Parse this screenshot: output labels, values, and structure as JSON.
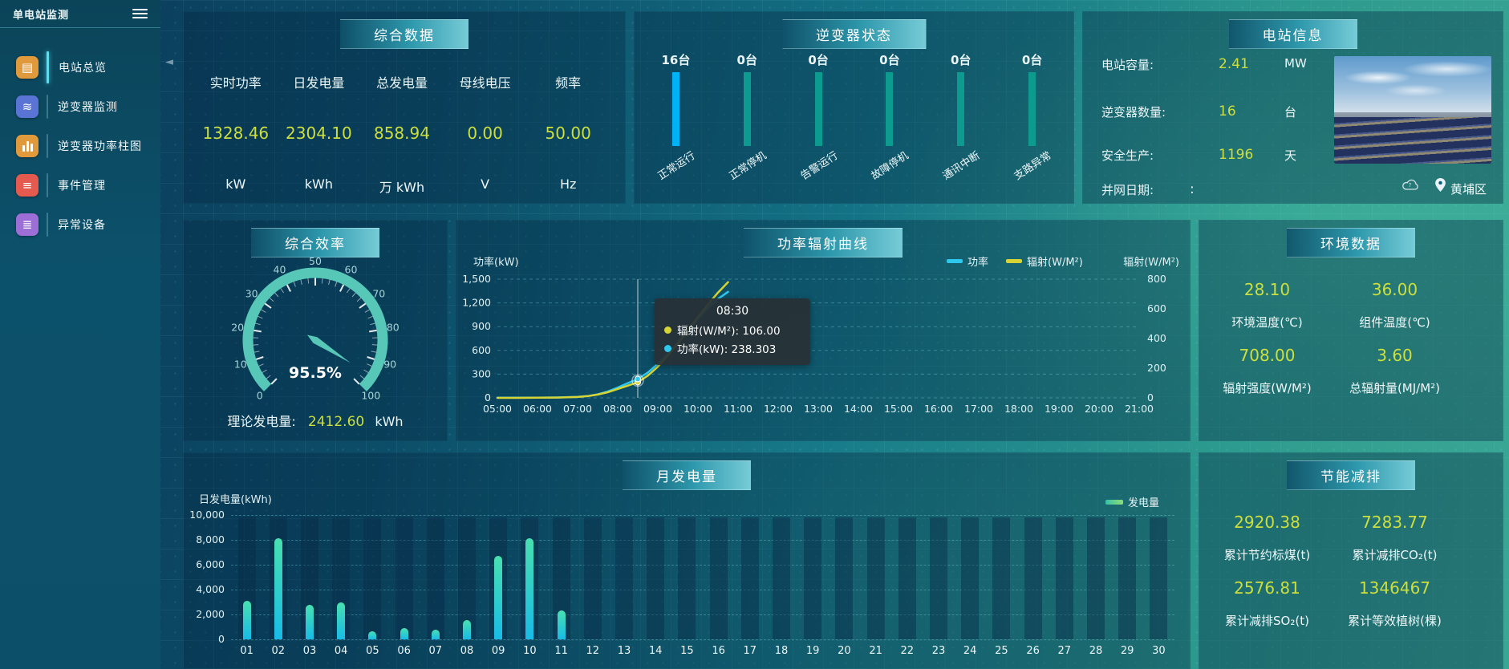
{
  "app": {
    "title": "单电站监测",
    "location": "黄埔区"
  },
  "sidebar": {
    "items": [
      {
        "label": "电站总览",
        "icon": "overview-icon",
        "color": "#e09a3c",
        "active": true
      },
      {
        "label": "逆变器监测",
        "icon": "inverter-monitor-icon",
        "color": "#5a74d6",
        "active": false
      },
      {
        "label": "逆变器功率柱图",
        "icon": "power-bars-icon",
        "color": "#e09a3c",
        "active": false
      },
      {
        "label": "事件管理",
        "icon": "event-icon",
        "color": "#e55a4e",
        "active": false
      },
      {
        "label": "异常设备",
        "icon": "abnormal-device-icon",
        "color": "#9c6ed6",
        "active": false
      }
    ]
  },
  "summary": {
    "title": "综合数据",
    "metrics": [
      {
        "label": "实时功率",
        "value": "1328.46",
        "unit": "kW"
      },
      {
        "label": "日发电量",
        "value": "2304.10",
        "unit": "kWh"
      },
      {
        "label": "总发电量",
        "value": "858.94",
        "unit": "万  kWh"
      },
      {
        "label": "母线电压",
        "value": "0.00",
        "unit": "V"
      },
      {
        "label": "频率",
        "value": "50.00",
        "unit": "Hz"
      }
    ]
  },
  "inverter_status": {
    "title": "逆变器状态",
    "bars": [
      {
        "count": "16台",
        "label": "正常运行",
        "highlight": true
      },
      {
        "count": "0台",
        "label": "正常停机",
        "highlight": false
      },
      {
        "count": "0台",
        "label": "告警运行",
        "highlight": false
      },
      {
        "count": "0台",
        "label": "故障停机",
        "highlight": false
      },
      {
        "count": "0台",
        "label": "通讯中断",
        "highlight": false
      },
      {
        "count": "0台",
        "label": "支路异常",
        "highlight": false
      }
    ]
  },
  "station_info": {
    "title": "电站信息",
    "rows": [
      {
        "label": "电站容量:",
        "value": "2.41",
        "unit": "MW"
      },
      {
        "label": "逆变器数量:",
        "value": "16",
        "unit": "台"
      },
      {
        "label": "安全生产:",
        "value": "1196",
        "unit": "天"
      },
      {
        "label": "并网日期:",
        "value": ":",
        "unit": ""
      }
    ]
  },
  "efficiency": {
    "title": "综合效率",
    "gauge_display": "95.5%",
    "theory_label": "理论发电量:",
    "theory_value": "2412.60",
    "theory_unit": "kWh"
  },
  "power_curve": {
    "title": "功率辐射曲线",
    "y_left_label": "功率(kW)",
    "y_right_label": "辐射(W/M²)",
    "legend": [
      {
        "name": "功率",
        "color": "#2ec7ee"
      },
      {
        "name": "辐射(W/M²)",
        "color": "#d6d434"
      }
    ],
    "tooltip": {
      "time": "08:30",
      "rows": [
        {
          "dot": "#d6d434",
          "text": "辐射(W/M²): 106.00"
        },
        {
          "dot": "#2ec7ee",
          "text": "功率(kW): 238.303"
        }
      ]
    }
  },
  "environment": {
    "title": "环境数据",
    "cells": [
      {
        "value": "28.10",
        "label": "环境温度(℃)"
      },
      {
        "value": "36.00",
        "label": "组件温度(℃)"
      },
      {
        "value": "708.00",
        "label": "辐射强度(W/M²)"
      },
      {
        "value": "3.60",
        "label": "总辐射量(MJ/M²)"
      }
    ]
  },
  "monthly": {
    "title": "月发电量",
    "y_label": "日发电量(kWh)",
    "legend": "发电量"
  },
  "saving": {
    "title": "节能减排",
    "cells": [
      {
        "value": "2920.38",
        "label": "累计节约标煤(t)"
      },
      {
        "value": "7283.77",
        "label": "累计减排CO₂(t)"
      },
      {
        "value": "2576.81",
        "label": "累计减排SO₂(t)"
      },
      {
        "value": "1346467",
        "label": "累计等效植树(棵)"
      }
    ]
  },
  "chart_data": [
    {
      "id": "efficiency_gauge",
      "type": "gauge",
      "title": "综合效率",
      "min": 0,
      "max": 100,
      "value": 95.5,
      "display": "95.5%",
      "tick_labels": [
        "0",
        "10",
        "20",
        "30",
        "40",
        "50",
        "60",
        "70",
        "80",
        "90",
        "100"
      ]
    },
    {
      "id": "power_radiation_curve",
      "type": "line",
      "title": "功率辐射曲线",
      "x_tick_labels": [
        "05:00",
        "06:00",
        "07:00",
        "08:00",
        "09:00",
        "10:00",
        "11:00",
        "12:00",
        "13:00",
        "14:00",
        "15:00",
        "16:00",
        "17:00",
        "18:00",
        "19:00",
        "20:00",
        "21:00"
      ],
      "ylim_left": [
        0,
        1500
      ],
      "yticks_left": [
        0,
        300,
        600,
        900,
        1200,
        1500
      ],
      "y_left_tick_labels": [
        "0",
        "300",
        "600",
        "900",
        "1,200",
        "1,500"
      ],
      "ylim_right": [
        0,
        800
      ],
      "yticks_right": [
        0,
        200,
        400,
        600,
        800
      ],
      "y_right_tick_labels": [
        "0",
        "200",
        "400",
        "600",
        "800"
      ],
      "series": [
        {
          "name": "功率",
          "axis": "left",
          "color": "#2ec7ee",
          "x": [
            5,
            5.5,
            6,
            6.5,
            7,
            7.25,
            7.5,
            7.75,
            8,
            8.25,
            8.5,
            8.75,
            9,
            9.25,
            9.5,
            9.75,
            10,
            10.25,
            10.5,
            10.75
          ],
          "values": [
            2,
            2,
            3,
            5,
            12,
            22,
            45,
            80,
            130,
            185,
            238.3,
            320,
            430,
            560,
            700,
            850,
            1000,
            1140,
            1250,
            1340
          ]
        },
        {
          "name": "辐射(W/M²)",
          "axis": "right",
          "color": "#d6d434",
          "x": [
            5,
            5.5,
            6,
            6.5,
            7,
            7.25,
            7.5,
            7.75,
            8,
            8.25,
            8.5,
            8.75,
            9,
            9.25,
            9.5,
            9.75,
            10,
            10.25,
            10.5,
            10.75
          ],
          "values": [
            0,
            0,
            1,
            2,
            6,
            12,
            22,
            38,
            60,
            82,
            106,
            150,
            210,
            285,
            365,
            455,
            545,
            630,
            710,
            780
          ]
        }
      ],
      "pointer": {
        "x": 8.5,
        "time": "08:30",
        "radiation": 106.0,
        "power": 238.303
      },
      "legend_position": "top-right",
      "grid": "dashed-horizontal"
    },
    {
      "id": "monthly_generation",
      "type": "bar",
      "title": "月发电量",
      "categories": [
        "01",
        "02",
        "03",
        "04",
        "05",
        "06",
        "07",
        "08",
        "09",
        "10",
        "11",
        "12",
        "13",
        "14",
        "15",
        "16",
        "17",
        "18",
        "19",
        "20",
        "21",
        "22",
        "23",
        "24",
        "25",
        "26",
        "27",
        "28",
        "29",
        "30"
      ],
      "values": [
        3100,
        8100,
        2800,
        3000,
        650,
        900,
        750,
        1550,
        6700,
        8100,
        2350,
        0,
        0,
        0,
        0,
        0,
        0,
        0,
        0,
        0,
        0,
        0,
        0,
        0,
        0,
        0,
        0,
        0,
        0,
        0
      ],
      "ylabel": "日发电量(kWh)",
      "ylim": [
        0,
        10000
      ],
      "yticks": [
        0,
        2000,
        4000,
        6000,
        8000,
        10000
      ],
      "y_tick_labels": [
        "0",
        "2,000",
        "4,000",
        "6,000",
        "8,000",
        "10,000"
      ],
      "legend": "发电量",
      "bar_color_top": "#49e0b0",
      "bar_color_bottom": "#18bbe6"
    },
    {
      "id": "inverter_status_bars",
      "type": "bar",
      "title": "逆变器状态",
      "categories": [
        "正常运行",
        "正常停机",
        "告警运行",
        "故障停机",
        "通讯中断",
        "支路异常"
      ],
      "values": [
        16,
        0,
        0,
        0,
        0,
        0
      ],
      "unit": "台",
      "highlight_color": "#00b3f6",
      "bar_color": "#0d9b90"
    }
  ]
}
